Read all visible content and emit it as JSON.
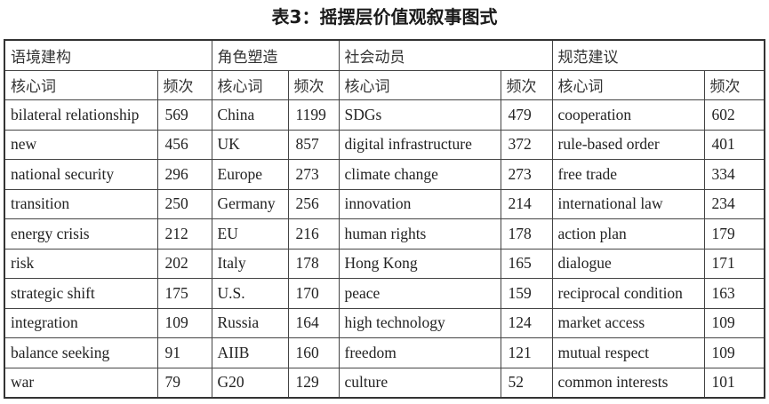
{
  "caption": "表3：摇摆层价值观叙事图式",
  "categories": [
    "语境建构",
    "角色塑造",
    "社会动员",
    "规范建议"
  ],
  "subheaders": {
    "keyword": "核心词",
    "frequency": "频次"
  },
  "rows": [
    [
      [
        "bilateral relationship",
        "569"
      ],
      [
        "China",
        "1199"
      ],
      [
        "SDGs",
        "479"
      ],
      [
        "cooperation",
        "602"
      ]
    ],
    [
      [
        "new",
        "456"
      ],
      [
        "UK",
        "857"
      ],
      [
        "digital infrastructure",
        "372"
      ],
      [
        "rule-based order",
        "401"
      ]
    ],
    [
      [
        "national security",
        "296"
      ],
      [
        "Europe",
        "273"
      ],
      [
        "climate change",
        "273"
      ],
      [
        "free trade",
        "334"
      ]
    ],
    [
      [
        "transition",
        "250"
      ],
      [
        "Germany",
        "256"
      ],
      [
        "innovation",
        "214"
      ],
      [
        "international law",
        "234"
      ]
    ],
    [
      [
        "energy crisis",
        "212"
      ],
      [
        "EU",
        "216"
      ],
      [
        "human rights",
        "178"
      ],
      [
        "action plan",
        "179"
      ]
    ],
    [
      [
        "risk",
        "202"
      ],
      [
        "Italy",
        "178"
      ],
      [
        "Hong Kong",
        "165"
      ],
      [
        "dialogue",
        "171"
      ]
    ],
    [
      [
        "strategic shift",
        "175"
      ],
      [
        "U.S.",
        "170"
      ],
      [
        "peace",
        "159"
      ],
      [
        "reciprocal condition",
        "163"
      ]
    ],
    [
      [
        "integration",
        "109"
      ],
      [
        "Russia",
        "164"
      ],
      [
        "high technology",
        "124"
      ],
      [
        "market access",
        "109"
      ]
    ],
    [
      [
        "balance seeking",
        "91"
      ],
      [
        "AIIB",
        "160"
      ],
      [
        "freedom",
        "121"
      ],
      [
        "mutual respect",
        "109"
      ]
    ],
    [
      [
        "war",
        "79"
      ],
      [
        "G20",
        "129"
      ],
      [
        "culture",
        "52"
      ],
      [
        "common interests",
        "101"
      ]
    ]
  ]
}
